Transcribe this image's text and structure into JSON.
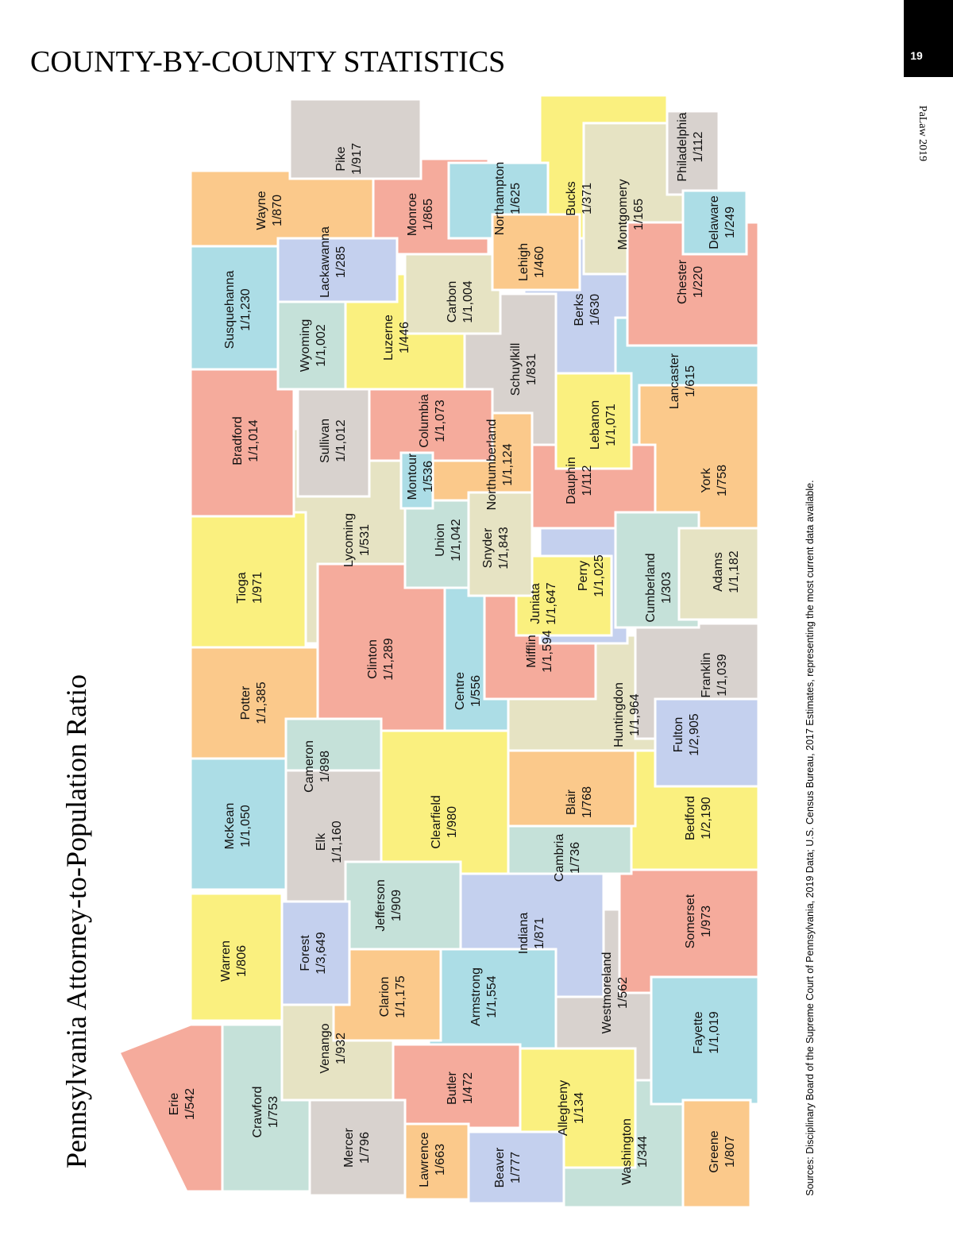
{
  "header": {
    "title": "COUNTY-BY-COUNTY STATISTICS",
    "page_number": "19",
    "publication": "PaLaw 2019"
  },
  "map": {
    "title": "Pennsylvania Attorney-to-Population Ratio",
    "source": "Sources: Disciplinary Board of the Supreme Court of Pennsylvania, 2019 Data; U.S. Census Bureau, 2017 Estimates, representing the most current data available.",
    "counties": [
      {
        "name": "Erie",
        "ratio": "1/542"
      },
      {
        "name": "Crawford",
        "ratio": "1/753"
      },
      {
        "name": "Mercer",
        "ratio": "1/796"
      },
      {
        "name": "Lawrence",
        "ratio": "1/663"
      },
      {
        "name": "Beaver",
        "ratio": "1/777"
      },
      {
        "name": "Butler",
        "ratio": "1/472"
      },
      {
        "name": "Venango",
        "ratio": "1/932"
      },
      {
        "name": "Warren",
        "ratio": "1/806"
      },
      {
        "name": "Forest",
        "ratio": "1/3,649"
      },
      {
        "name": "Clarion",
        "ratio": "1/1,175"
      },
      {
        "name": "Armstrong",
        "ratio": "1/1,554"
      },
      {
        "name": "Allegheny",
        "ratio": "1/134"
      },
      {
        "name": "Washington",
        "ratio": "1/344"
      },
      {
        "name": "Greene",
        "ratio": "1/807"
      },
      {
        "name": "Westmoreland",
        "ratio": "1/562"
      },
      {
        "name": "Fayette",
        "ratio": "1/1,019"
      },
      {
        "name": "Somerset",
        "ratio": "1/973"
      },
      {
        "name": "Indiana",
        "ratio": "1/871"
      },
      {
        "name": "Jefferson",
        "ratio": "1/909"
      },
      {
        "name": "McKean",
        "ratio": "1/1,050"
      },
      {
        "name": "Elk",
        "ratio": "1/1,160"
      },
      {
        "name": "Cameron",
        "ratio": "1/898"
      },
      {
        "name": "Potter",
        "ratio": "1/1,385"
      },
      {
        "name": "Tioga",
        "ratio": "1/971"
      },
      {
        "name": "Bradford",
        "ratio": "1/1,014"
      },
      {
        "name": "Susquehanna",
        "ratio": "1/1,230"
      },
      {
        "name": "Wayne",
        "ratio": "1/870"
      },
      {
        "name": "Pike",
        "ratio": "1/917"
      },
      {
        "name": "Lackawanna",
        "ratio": "1/285"
      },
      {
        "name": "Wyoming",
        "ratio": "1/1,002"
      },
      {
        "name": "Luzerne",
        "ratio": "1/446"
      },
      {
        "name": "Sullivan",
        "ratio": "1/1,012"
      },
      {
        "name": "Lycoming",
        "ratio": "1/531"
      },
      {
        "name": "Clinton",
        "ratio": "1/1,289"
      },
      {
        "name": "Clearfield",
        "ratio": "1/980"
      },
      {
        "name": "Centre",
        "ratio": "1/556"
      },
      {
        "name": "Cambria",
        "ratio": "1/736"
      },
      {
        "name": "Blair",
        "ratio": "1/768"
      },
      {
        "name": "Bedford",
        "ratio": "1/2,190"
      },
      {
        "name": "Huntingdon",
        "ratio": "1/1,964"
      },
      {
        "name": "Fulton",
        "ratio": "1/2,905"
      },
      {
        "name": "Franklin",
        "ratio": "1/1,039"
      },
      {
        "name": "Adams",
        "ratio": "1/1,182"
      },
      {
        "name": "Cumberland",
        "ratio": "1/303"
      },
      {
        "name": "Perry",
        "ratio": "1/1,025"
      },
      {
        "name": "Juniata",
        "ratio": "1/1,647"
      },
      {
        "name": "Mifflin",
        "ratio": "1/1,594"
      },
      {
        "name": "Snyder",
        "ratio": "1/1,843"
      },
      {
        "name": "Union",
        "ratio": "1/1,042"
      },
      {
        "name": "Montour",
        "ratio": "1/536"
      },
      {
        "name": "Northumberland",
        "ratio": "1/1,124"
      },
      {
        "name": "Columbia",
        "ratio": "1/1,073"
      },
      {
        "name": "Carbon",
        "ratio": "1/1,004"
      },
      {
        "name": "Monroe",
        "ratio": "1/865"
      },
      {
        "name": "Northampton",
        "ratio": "1/625"
      },
      {
        "name": "Lehigh",
        "ratio": "1/460"
      },
      {
        "name": "Schuylkill",
        "ratio": "1/831"
      },
      {
        "name": "Dauphin",
        "ratio": "1/112"
      },
      {
        "name": "Lebanon",
        "ratio": "1/1,071"
      },
      {
        "name": "Berks",
        "ratio": "1/630"
      },
      {
        "name": "Lancaster",
        "ratio": "1/615"
      },
      {
        "name": "York",
        "ratio": "1/758"
      },
      {
        "name": "Chester",
        "ratio": "1/220"
      },
      {
        "name": "Delaware",
        "ratio": "1/249"
      },
      {
        "name": "Montgomery",
        "ratio": "1/165"
      },
      {
        "name": "Bucks",
        "ratio": "1/371"
      },
      {
        "name": "Philadelphia",
        "ratio": "1/112"
      }
    ]
  }
}
